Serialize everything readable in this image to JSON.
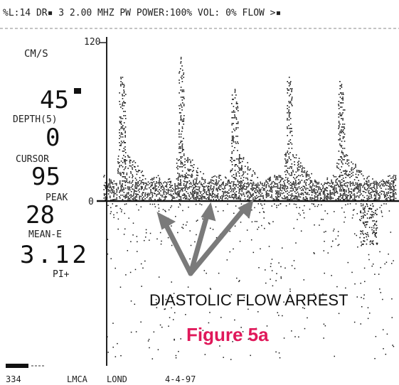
{
  "header": {
    "text": "%L:14 DR▪ 3  2.00 MHZ PW  POWER:100%   VOL:  0%  FLOW >▪"
  },
  "scale": {
    "top": "120",
    "zero": "0"
  },
  "readouts": [
    {
      "label": "CM/S"
    },
    {
      "value": "45",
      "label": "DEPTH(5)"
    },
    {
      "value": "0",
      "label": "CURSOR"
    },
    {
      "value": "95",
      "label": "PEAK"
    },
    {
      "value": "28",
      "label": "MEAN-E"
    },
    {
      "value": "3.12",
      "label": "PI+"
    }
  ],
  "annotation": "DIASTOLIC FLOW ARREST",
  "caption": "Figure 5a",
  "footer": [
    "334",
    "LMCA",
    "LOND",
    "4-4-97"
  ]
}
